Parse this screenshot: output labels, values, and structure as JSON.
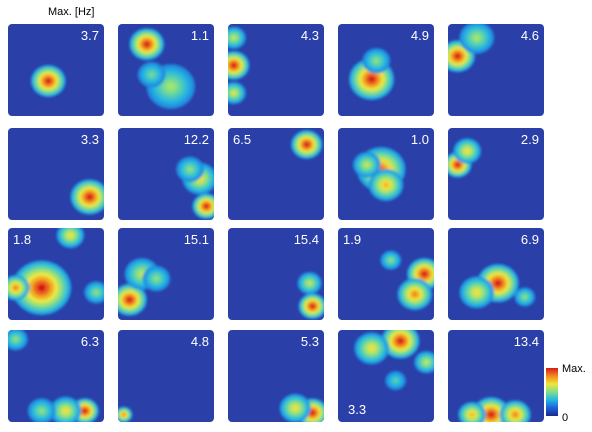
{
  "chart_data": {
    "type": "heatmap",
    "header_label": "Max. [Hz]",
    "colorbar": {
      "max_label": "Max.",
      "min_label": "0",
      "colors": [
        "#1b2a8f",
        "#1f5fd6",
        "#22b5e6",
        "#7ee08a",
        "#f2e63a",
        "#f28a1e",
        "#d7191c"
      ]
    },
    "background_color": "#2a3fa8",
    "maps": [
      {
        "row": 0,
        "col": 0,
        "max_hz": "3.7",
        "label_pos": "top-right",
        "fields": [
          {
            "x": 0.42,
            "y": 0.62,
            "r": 0.1,
            "v": 1.0
          }
        ]
      },
      {
        "row": 0,
        "col": 1,
        "max_hz": "1.1",
        "label_pos": "top-right",
        "fields": [
          {
            "x": 0.3,
            "y": 0.22,
            "r": 0.1,
            "v": 1.0
          },
          {
            "x": 0.55,
            "y": 0.68,
            "r": 0.14,
            "v": 0.45
          },
          {
            "x": 0.35,
            "y": 0.55,
            "r": 0.08,
            "v": 0.35
          }
        ]
      },
      {
        "row": 0,
        "col": 2,
        "max_hz": "4.3",
        "label_pos": "top-right",
        "fields": [
          {
            "x": 0.06,
            "y": 0.45,
            "r": 0.09,
            "v": 1.0
          },
          {
            "x": 0.06,
            "y": 0.15,
            "r": 0.07,
            "v": 0.5
          },
          {
            "x": 0.06,
            "y": 0.75,
            "r": 0.07,
            "v": 0.55
          }
        ]
      },
      {
        "row": 0,
        "col": 3,
        "max_hz": "4.9",
        "label_pos": "top-right",
        "fields": [
          {
            "x": 0.35,
            "y": 0.6,
            "r": 0.13,
            "v": 1.0
          },
          {
            "x": 0.4,
            "y": 0.4,
            "r": 0.08,
            "v": 0.4
          }
        ]
      },
      {
        "row": 0,
        "col": 4,
        "max_hz": "4.6",
        "label_pos": "top-right",
        "fields": [
          {
            "x": 0.1,
            "y": 0.35,
            "r": 0.1,
            "v": 1.0
          },
          {
            "x": 0.3,
            "y": 0.15,
            "r": 0.1,
            "v": 0.45
          }
        ]
      },
      {
        "row": 1,
        "col": 0,
        "max_hz": "3.3",
        "label_pos": "top-right",
        "fields": [
          {
            "x": 0.85,
            "y": 0.75,
            "r": 0.11,
            "v": 1.0
          }
        ]
      },
      {
        "row": 1,
        "col": 1,
        "max_hz": "12.2",
        "label_pos": "top-right",
        "fields": [
          {
            "x": 0.92,
            "y": 0.85,
            "r": 0.08,
            "v": 1.0
          },
          {
            "x": 0.85,
            "y": 0.55,
            "r": 0.1,
            "v": 0.6
          },
          {
            "x": 0.75,
            "y": 0.45,
            "r": 0.08,
            "v": 0.4
          }
        ]
      },
      {
        "row": 1,
        "col": 2,
        "max_hz": "6.5",
        "label_pos": "top-left",
        "fields": [
          {
            "x": 0.82,
            "y": 0.18,
            "r": 0.09,
            "v": 1.0
          }
        ]
      },
      {
        "row": 1,
        "col": 3,
        "max_hz": "1.0",
        "label_pos": "top-right",
        "fields": [
          {
            "x": 0.45,
            "y": 0.45,
            "r": 0.14,
            "v": 0.85
          },
          {
            "x": 0.5,
            "y": 0.62,
            "r": 0.1,
            "v": 0.7
          },
          {
            "x": 0.3,
            "y": 0.4,
            "r": 0.08,
            "v": 0.5
          }
        ]
      },
      {
        "row": 1,
        "col": 4,
        "max_hz": "2.9",
        "label_pos": "top-right",
        "fields": [
          {
            "x": 0.1,
            "y": 0.4,
            "r": 0.08,
            "v": 1.0
          },
          {
            "x": 0.2,
            "y": 0.25,
            "r": 0.08,
            "v": 0.6
          }
        ]
      },
      {
        "row": 2,
        "col": 0,
        "max_hz": "1.8",
        "label_pos": "top-left",
        "fields": [
          {
            "x": 0.35,
            "y": 0.65,
            "r": 0.17,
            "v": 1.0
          },
          {
            "x": 0.08,
            "y": 0.65,
            "r": 0.08,
            "v": 0.8
          },
          {
            "x": 0.65,
            "y": 0.08,
            "r": 0.08,
            "v": 0.6
          },
          {
            "x": 0.92,
            "y": 0.7,
            "r": 0.07,
            "v": 0.4
          }
        ]
      },
      {
        "row": 2,
        "col": 1,
        "max_hz": "15.1",
        "label_pos": "top-right",
        "fields": [
          {
            "x": 0.12,
            "y": 0.78,
            "r": 0.1,
            "v": 1.0
          },
          {
            "x": 0.25,
            "y": 0.5,
            "r": 0.1,
            "v": 0.5
          },
          {
            "x": 0.4,
            "y": 0.55,
            "r": 0.08,
            "v": 0.4
          }
        ]
      },
      {
        "row": 2,
        "col": 2,
        "max_hz": "15.4",
        "label_pos": "top-right",
        "fields": [
          {
            "x": 0.88,
            "y": 0.85,
            "r": 0.08,
            "v": 1.0
          },
          {
            "x": 0.85,
            "y": 0.6,
            "r": 0.07,
            "v": 0.5
          }
        ]
      },
      {
        "row": 2,
        "col": 3,
        "max_hz": "1.9",
        "label_pos": "top-left",
        "fields": [
          {
            "x": 0.9,
            "y": 0.5,
            "r": 0.1,
            "v": 1.0
          },
          {
            "x": 0.8,
            "y": 0.72,
            "r": 0.1,
            "v": 0.8
          },
          {
            "x": 0.55,
            "y": 0.35,
            "r": 0.06,
            "v": 0.4
          }
        ]
      },
      {
        "row": 2,
        "col": 4,
        "max_hz": "6.9",
        "label_pos": "top-right",
        "fields": [
          {
            "x": 0.52,
            "y": 0.6,
            "r": 0.12,
            "v": 1.0
          },
          {
            "x": 0.3,
            "y": 0.7,
            "r": 0.1,
            "v": 0.6
          },
          {
            "x": 0.8,
            "y": 0.75,
            "r": 0.06,
            "v": 0.4
          }
        ]
      },
      {
        "row": 3,
        "col": 0,
        "max_hz": "6.3",
        "label_pos": "top-right",
        "fields": [
          {
            "x": 0.8,
            "y": 0.88,
            "r": 0.08,
            "v": 1.0
          },
          {
            "x": 0.6,
            "y": 0.88,
            "r": 0.09,
            "v": 0.6
          },
          {
            "x": 0.35,
            "y": 0.88,
            "r": 0.08,
            "v": 0.4
          },
          {
            "x": 0.08,
            "y": 0.1,
            "r": 0.07,
            "v": 0.4
          }
        ]
      },
      {
        "row": 3,
        "col": 1,
        "max_hz": "4.8",
        "label_pos": "top-right",
        "fields": [
          {
            "x": 0.06,
            "y": 0.92,
            "r": 0.05,
            "v": 0.8
          }
        ]
      },
      {
        "row": 3,
        "col": 2,
        "max_hz": "5.3",
        "label_pos": "top-right",
        "fields": [
          {
            "x": 0.88,
            "y": 0.9,
            "r": 0.09,
            "v": 1.0
          },
          {
            "x": 0.7,
            "y": 0.85,
            "r": 0.09,
            "v": 0.6
          }
        ]
      },
      {
        "row": 3,
        "col": 3,
        "max_hz": "3.3",
        "label_pos": "bottom-left",
        "fields": [
          {
            "x": 0.65,
            "y": 0.12,
            "r": 0.11,
            "v": 1.0
          },
          {
            "x": 0.35,
            "y": 0.2,
            "r": 0.1,
            "v": 0.6
          },
          {
            "x": 0.92,
            "y": 0.35,
            "r": 0.07,
            "v": 0.5
          },
          {
            "x": 0.6,
            "y": 0.55,
            "r": 0.06,
            "v": 0.3
          }
        ]
      },
      {
        "row": 3,
        "col": 4,
        "max_hz": "13.4",
        "label_pos": "top-right",
        "fields": [
          {
            "x": 0.45,
            "y": 0.92,
            "r": 0.11,
            "v": 1.0
          },
          {
            "x": 0.25,
            "y": 0.92,
            "r": 0.08,
            "v": 0.7
          },
          {
            "x": 0.7,
            "y": 0.92,
            "r": 0.09,
            "v": 0.8
          }
        ]
      }
    ]
  }
}
